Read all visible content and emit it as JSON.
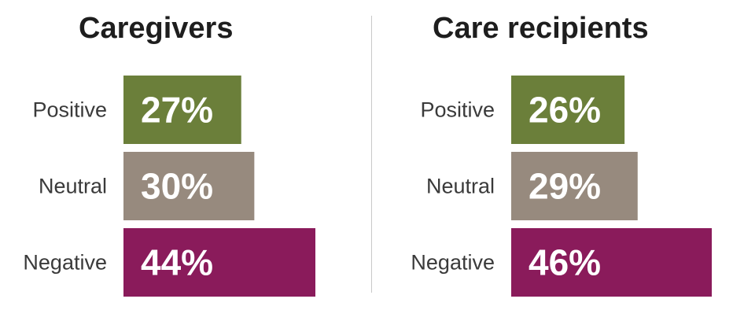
{
  "chart_data": [
    {
      "type": "bar",
      "orientation": "horizontal",
      "title": "Caregivers",
      "categories": [
        "Positive",
        "Neutral",
        "Negative"
      ],
      "values": [
        27,
        30,
        44
      ],
      "value_labels": [
        "27%",
        "30%",
        "44%"
      ],
      "colors": [
        "#6b7f3a",
        "#978a7e",
        "#8a1b5b"
      ],
      "xlim": [
        0,
        44
      ],
      "grid": false
    },
    {
      "type": "bar",
      "orientation": "horizontal",
      "title": "Care recipients",
      "categories": [
        "Positive",
        "Neutral",
        "Negative"
      ],
      "values": [
        26,
        29,
        46
      ],
      "value_labels": [
        "26%",
        "29%",
        "46%"
      ],
      "colors": [
        "#6b7f3a",
        "#978a7e",
        "#8a1b5b"
      ],
      "xlim": [
        0,
        46
      ],
      "grid": false
    }
  ],
  "colors": {
    "positive": "#6b7f3a",
    "neutral": "#978a7e",
    "negative": "#8a1b5b",
    "title_text": "#1e1e1e",
    "label_text": "#3a3a3a",
    "divider": "#c8c8c8"
  }
}
